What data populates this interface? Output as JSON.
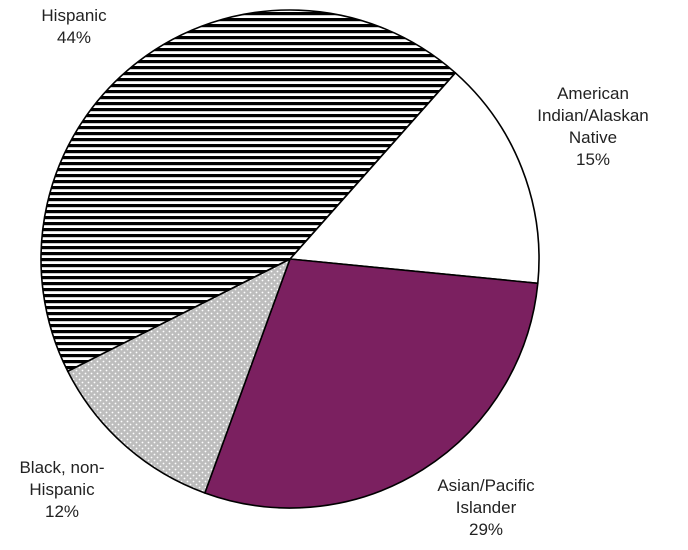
{
  "chart_data": {
    "type": "pie",
    "title": "",
    "start_direction": "clockwise",
    "slices": [
      {
        "name": "American Indian/Alaskan Native",
        "value": 15,
        "label_lines": [
          "American",
          "Indian/Alaskan",
          "Native",
          "15%"
        ],
        "fill": "white",
        "color": "#ffffff"
      },
      {
        "name": "Asian/Pacific Islander",
        "value": 29,
        "label_lines": [
          "Asian/Pacific",
          "Islander",
          "29%"
        ],
        "fill": "solid",
        "color": "#7b2060"
      },
      {
        "name": "Black, non-Hispanic",
        "value": 12,
        "label_lines": [
          "Black, non-",
          "Hispanic",
          "12%"
        ],
        "fill": "dots",
        "color": "#c8c8c8"
      },
      {
        "name": "Hispanic",
        "value": 44,
        "label_lines": [
          "Hispanic",
          "44%"
        ],
        "fill": "horizontal-stripes",
        "color": "#000000"
      }
    ]
  }
}
